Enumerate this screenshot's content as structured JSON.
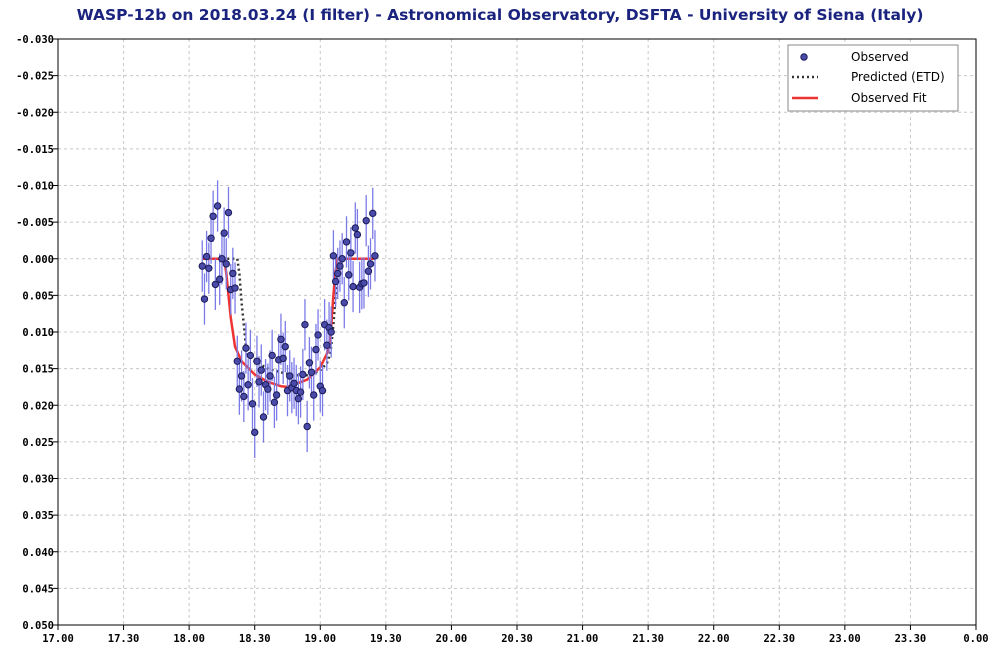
{
  "chart_data": {
    "type": "scatter",
    "title": "WASP-12b on 2018.03.24 (I filter) - Astronomical Observatory, DSFTA - University of Siena (Italy)",
    "xlabel": "",
    "ylabel": "",
    "x_ticks": [
      "17.00",
      "17.30",
      "18.00",
      "18.30",
      "19.00",
      "19.30",
      "20.00",
      "20.30",
      "21.00",
      "21.30",
      "22.00",
      "22.30",
      "23.00",
      "23.30",
      "0.00"
    ],
    "y_ticks": [
      "-0.030",
      "-0.025",
      "-0.020",
      "-0.015",
      "-0.010",
      "-0.005",
      "0.000",
      "0.005",
      "0.010",
      "0.015",
      "0.020",
      "0.025",
      "0.030",
      "0.035",
      "0.040",
      "0.045",
      "0.050"
    ],
    "xlim": [
      17.0,
      24.0
    ],
    "ylim": [
      -0.03,
      0.05
    ],
    "y_inverted": true,
    "grid": true,
    "legend_position": "top-right",
    "legend": [
      "Observed",
      "Predicted (ETD)",
      "Observed Fit"
    ],
    "colors": {
      "observed_fill": "#4a4aa8",
      "observed_edge": "#1a1a5a",
      "error_bar": "#7b7be8",
      "predicted": "#333333",
      "fit": "#ee3333",
      "grid": "#c8c8c8",
      "title": "#1a237e"
    },
    "series": [
      {
        "name": "Observed",
        "type": "scatter",
        "error": 0.0035,
        "points": [
          [
            18.1,
            0.001
          ],
          [
            18.117,
            0.0055
          ],
          [
            18.133,
            -0.0003
          ],
          [
            18.15,
            0.0013
          ],
          [
            18.167,
            -0.0028
          ],
          [
            18.183,
            -0.0058
          ],
          [
            18.2,
            0.0035
          ],
          [
            18.217,
            -0.0072
          ],
          [
            18.233,
            0.0028
          ],
          [
            18.25,
            0.0
          ],
          [
            18.267,
            -0.0035
          ],
          [
            18.283,
            0.0007
          ],
          [
            18.3,
            -0.0063
          ],
          [
            18.317,
            0.0042
          ],
          [
            18.333,
            0.002
          ],
          [
            18.35,
            0.004
          ],
          [
            18.367,
            0.014
          ],
          [
            18.383,
            0.0178
          ],
          [
            18.4,
            0.016
          ],
          [
            18.417,
            0.0188
          ],
          [
            18.433,
            0.0122
          ],
          [
            18.45,
            0.0172
          ],
          [
            18.467,
            0.0132
          ],
          [
            18.483,
            0.0198
          ],
          [
            18.5,
            0.0237
          ],
          [
            18.517,
            0.014
          ],
          [
            18.533,
            0.0168
          ],
          [
            18.55,
            0.0152
          ],
          [
            18.567,
            0.0216
          ],
          [
            18.583,
            0.0172
          ],
          [
            18.6,
            0.0178
          ],
          [
            18.617,
            0.016
          ],
          [
            18.633,
            0.0132
          ],
          [
            18.65,
            0.0196
          ],
          [
            18.667,
            0.0186
          ],
          [
            18.683,
            0.0138
          ],
          [
            18.7,
            0.011
          ],
          [
            18.717,
            0.0136
          ],
          [
            18.733,
            0.012
          ],
          [
            18.75,
            0.018
          ],
          [
            18.767,
            0.016
          ],
          [
            18.783,
            0.0176
          ],
          [
            18.8,
            0.017
          ],
          [
            18.817,
            0.018
          ],
          [
            18.833,
            0.0191
          ],
          [
            18.85,
            0.0182
          ],
          [
            18.867,
            0.0158
          ],
          [
            18.883,
            0.009
          ],
          [
            18.9,
            0.0229
          ],
          [
            18.917,
            0.0142
          ],
          [
            18.933,
            0.0155
          ],
          [
            18.95,
            0.0186
          ],
          [
            18.967,
            0.0124
          ],
          [
            18.983,
            0.0104
          ],
          [
            19.0,
            0.0174
          ],
          [
            19.017,
            0.018
          ],
          [
            19.033,
            0.009
          ],
          [
            19.05,
            0.0118
          ],
          [
            19.067,
            0.0094
          ],
          [
            19.083,
            0.01
          ],
          [
            19.1,
            -0.0004
          ],
          [
            19.117,
            0.0031
          ],
          [
            19.133,
            0.002
          ],
          [
            19.15,
            0.001
          ],
          [
            19.167,
            0.0
          ],
          [
            19.183,
            0.006
          ],
          [
            19.2,
            -0.0023
          ],
          [
            19.217,
            0.0022
          ],
          [
            19.233,
            -0.0008
          ],
          [
            19.25,
            0.0038
          ],
          [
            19.267,
            -0.0042
          ],
          [
            19.283,
            -0.0033
          ],
          [
            19.3,
            0.0039
          ],
          [
            19.317,
            0.0034
          ],
          [
            19.333,
            0.0033
          ],
          [
            19.35,
            -0.0052
          ],
          [
            19.367,
            0.0017
          ],
          [
            19.383,
            0.0007
          ],
          [
            19.4,
            -0.0062
          ],
          [
            19.417,
            -0.0004
          ]
        ]
      },
      {
        "name": "Predicted (ETD)",
        "type": "line",
        "style": "dotted",
        "points": [
          [
            18.1,
            0.0
          ],
          [
            18.3,
            0.0
          ],
          [
            18.367,
            0.0
          ],
          [
            18.383,
            0.002
          ],
          [
            18.4,
            0.006
          ],
          [
            18.417,
            0.009
          ],
          [
            18.433,
            0.012
          ],
          [
            18.45,
            0.0132
          ],
          [
            18.5,
            0.014
          ],
          [
            18.6,
            0.015
          ],
          [
            18.7,
            0.0155
          ],
          [
            18.8,
            0.0159
          ],
          [
            18.9,
            0.0159
          ],
          [
            18.95,
            0.0157
          ],
          [
            19.0,
            0.0152
          ],
          [
            19.05,
            0.0143
          ],
          [
            19.067,
            0.0134
          ],
          [
            19.083,
            0.012
          ],
          [
            19.1,
            0.009
          ],
          [
            19.117,
            0.005
          ],
          [
            19.133,
            0.002
          ],
          [
            19.15,
            0.0
          ],
          [
            19.417,
            0.0
          ]
        ]
      },
      {
        "name": "Observed Fit",
        "type": "line",
        "style": "solid",
        "points": [
          [
            18.1,
            0.0
          ],
          [
            18.25,
            0.0
          ],
          [
            18.267,
            0.0
          ],
          [
            18.283,
            0.002
          ],
          [
            18.317,
            0.008
          ],
          [
            18.35,
            0.012
          ],
          [
            18.4,
            0.014
          ],
          [
            18.5,
            0.0158
          ],
          [
            18.6,
            0.0168
          ],
          [
            18.7,
            0.0174
          ],
          [
            18.75,
            0.0175
          ],
          [
            18.8,
            0.0172
          ],
          [
            18.9,
            0.0165
          ],
          [
            19.0,
            0.0148
          ],
          [
            19.05,
            0.013
          ],
          [
            19.067,
            0.0118
          ],
          [
            19.083,
            0.0092
          ],
          [
            19.1,
            0.005
          ],
          [
            19.117,
            0.0016
          ],
          [
            19.133,
            0.0
          ],
          [
            19.417,
            0.0
          ]
        ]
      }
    ]
  }
}
